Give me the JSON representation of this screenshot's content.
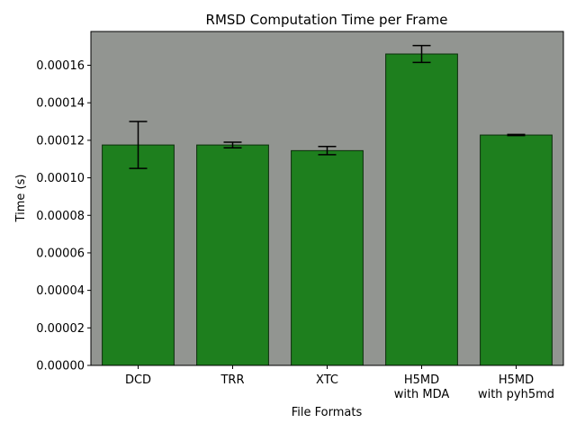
{
  "chart_data": {
    "type": "bar",
    "title": "RMSD Computation Time per Frame",
    "xlabel": "File Formats",
    "ylabel": "Time (s)",
    "categories": [
      "DCD",
      "TRR",
      "XTC",
      "H5MD\nwith MDA",
      "H5MD\nwith pyh5md"
    ],
    "values": [
      0.0001175,
      0.0001175,
      0.0001145,
      0.000166,
      0.0001228
    ],
    "errors": [
      1.25e-05,
      1.5e-06,
      2.2e-06,
      4.5e-06,
      3e-07
    ],
    "ylim": [
      0,
      0.000178
    ],
    "yticks": [
      0,
      2e-05,
      4e-05,
      6e-05,
      8e-05,
      0.0001,
      0.00012,
      0.00014,
      0.00016
    ],
    "ytick_labels": [
      "0.00000",
      "0.00002",
      "0.00004",
      "0.00006",
      "0.00008",
      "0.00010",
      "0.00012",
      "0.00014",
      "0.00016"
    ],
    "grid": false,
    "colors": {
      "bar": "#1e7f1e",
      "bar_edge": "#0a2e0a",
      "plot_background": "#929591",
      "error_bar": "#000000"
    }
  }
}
